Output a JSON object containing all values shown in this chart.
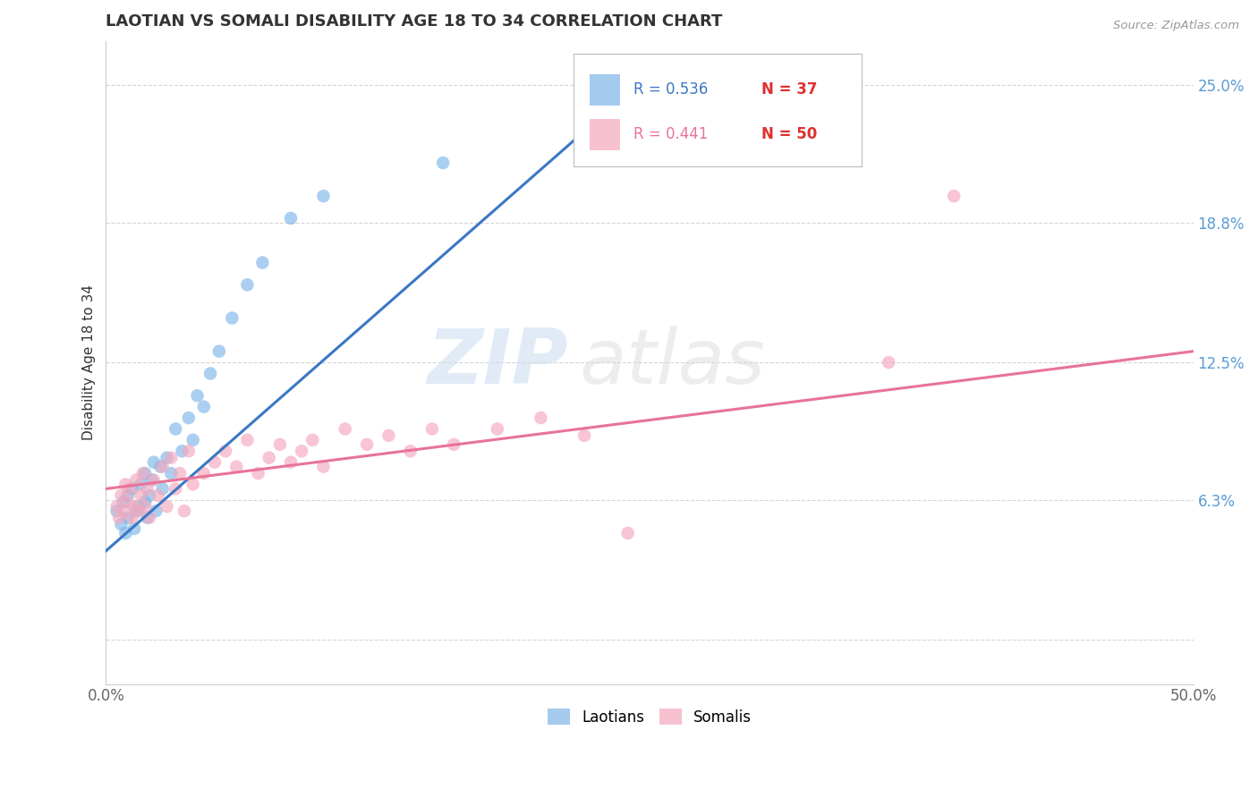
{
  "title": "LAOTIAN VS SOMALI DISABILITY AGE 18 TO 34 CORRELATION CHART",
  "source": "Source: ZipAtlas.com",
  "ylabel": "Disability Age 18 to 34",
  "xmin": 0.0,
  "xmax": 0.5,
  "ymin": -0.02,
  "ymax": 0.27,
  "yticks": [
    0.0,
    0.063,
    0.125,
    0.188,
    0.25
  ],
  "ytick_labels": [
    "",
    "6.3%",
    "12.5%",
    "18.8%",
    "25.0%"
  ],
  "xticks": [
    0.0,
    0.1,
    0.2,
    0.3,
    0.4,
    0.5
  ],
  "xtick_labels": [
    "0.0%",
    "",
    "",
    "",
    "",
    "50.0%"
  ],
  "legend_blue_r": "R = 0.536",
  "legend_blue_n": "N = 37",
  "legend_pink_r": "R = 0.441",
  "legend_pink_n": "N = 50",
  "watermark_zip": "ZIP",
  "watermark_atlas": "atlas",
  "blue_color": "#7EB6E8",
  "pink_color": "#F4A7BC",
  "blue_line_color": "#3B78C3",
  "pink_line_color": "#E8739A",
  "blue_r_color": "#3B78C3",
  "blue_n_color": "#E03030",
  "pink_r_color": "#E8739A",
  "pink_n_color": "#E03030",
  "laotian_x": [
    0.005,
    0.007,
    0.008,
    0.009,
    0.01,
    0.01,
    0.012,
    0.013,
    0.014,
    0.015,
    0.016,
    0.018,
    0.018,
    0.019,
    0.02,
    0.021,
    0.022,
    0.023,
    0.025,
    0.026,
    0.028,
    0.03,
    0.032,
    0.035,
    0.038,
    0.04,
    0.042,
    0.045,
    0.048,
    0.052,
    0.058,
    0.065,
    0.072,
    0.085,
    0.1,
    0.155,
    0.22
  ],
  "laotian_y": [
    0.058,
    0.052,
    0.062,
    0.048,
    0.055,
    0.065,
    0.068,
    0.05,
    0.058,
    0.06,
    0.07,
    0.062,
    0.075,
    0.055,
    0.065,
    0.072,
    0.08,
    0.058,
    0.078,
    0.068,
    0.082,
    0.075,
    0.095,
    0.085,
    0.1,
    0.09,
    0.11,
    0.105,
    0.12,
    0.13,
    0.145,
    0.16,
    0.17,
    0.19,
    0.2,
    0.215,
    0.24
  ],
  "somali_x": [
    0.005,
    0.006,
    0.007,
    0.008,
    0.009,
    0.01,
    0.011,
    0.012,
    0.013,
    0.014,
    0.015,
    0.016,
    0.017,
    0.018,
    0.019,
    0.02,
    0.022,
    0.024,
    0.026,
    0.028,
    0.03,
    0.032,
    0.034,
    0.036,
    0.038,
    0.04,
    0.045,
    0.05,
    0.055,
    0.06,
    0.065,
    0.07,
    0.075,
    0.08,
    0.085,
    0.09,
    0.095,
    0.1,
    0.11,
    0.12,
    0.13,
    0.14,
    0.15,
    0.16,
    0.18,
    0.2,
    0.22,
    0.24,
    0.36,
    0.39
  ],
  "somali_y": [
    0.06,
    0.055,
    0.065,
    0.058,
    0.07,
    0.062,
    0.068,
    0.055,
    0.06,
    0.072,
    0.058,
    0.065,
    0.075,
    0.06,
    0.068,
    0.055,
    0.072,
    0.065,
    0.078,
    0.06,
    0.082,
    0.068,
    0.075,
    0.058,
    0.085,
    0.07,
    0.075,
    0.08,
    0.085,
    0.078,
    0.09,
    0.075,
    0.082,
    0.088,
    0.08,
    0.085,
    0.09,
    0.078,
    0.095,
    0.088,
    0.092,
    0.085,
    0.095,
    0.088,
    0.095,
    0.1,
    0.092,
    0.048,
    0.125,
    0.2
  ],
  "blue_regline_x": [
    0.0,
    0.25
  ],
  "blue_regline_y": [
    0.04,
    0.255
  ],
  "pink_regline_x": [
    0.0,
    0.5
  ],
  "pink_regline_y": [
    0.068,
    0.13
  ]
}
